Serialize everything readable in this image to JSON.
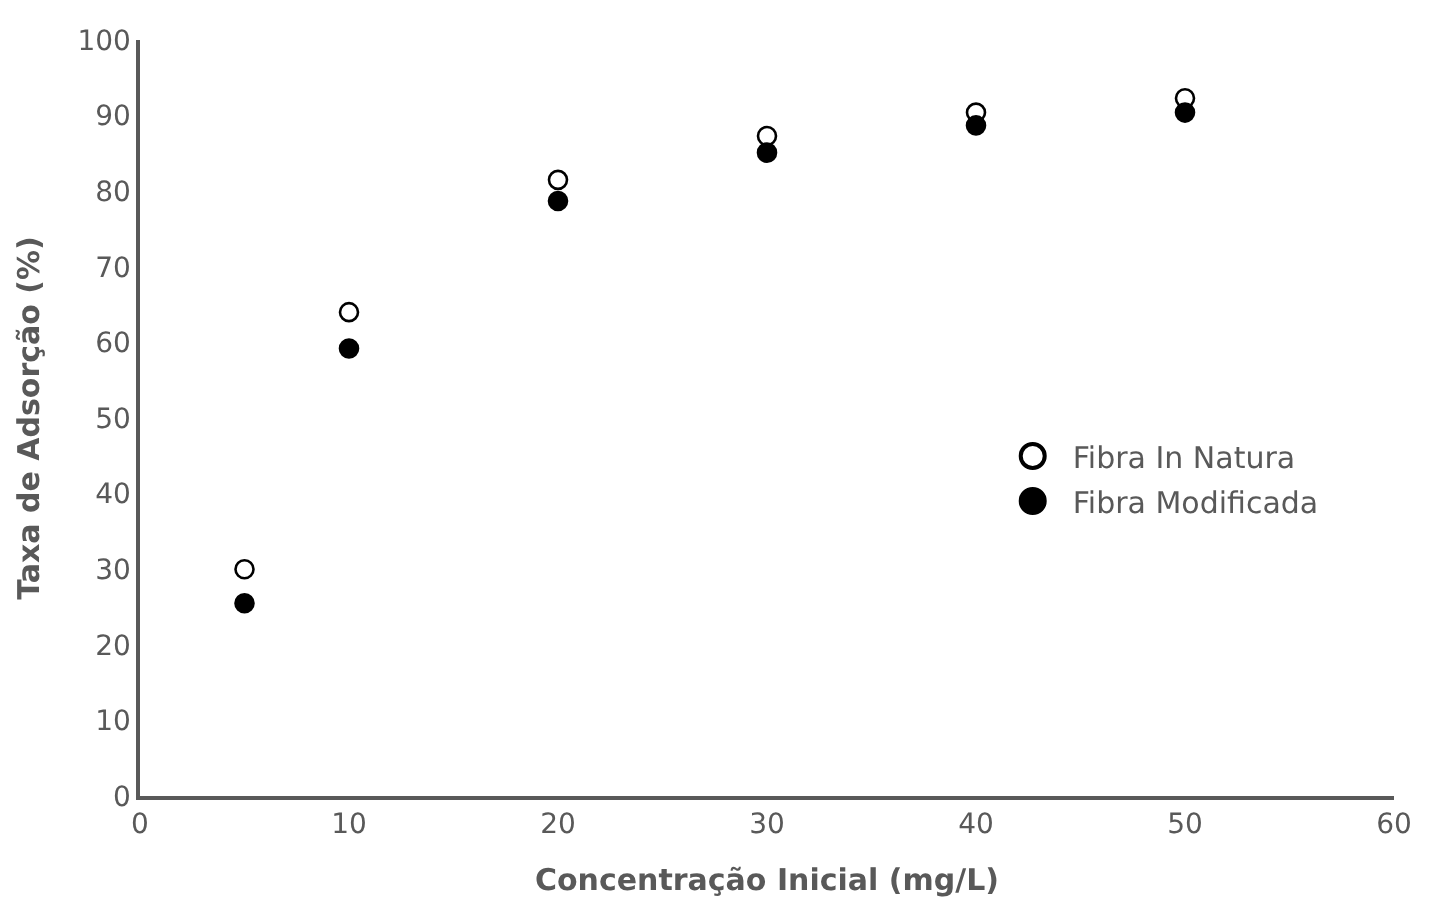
{
  "chart_data": {
    "type": "scatter",
    "xlabel": "Concentração Inicial (mg/L)",
    "ylabel": "Taxa de Adsorção (%)",
    "x": [
      5,
      10,
      20,
      30,
      40,
      50
    ],
    "series": [
      {
        "name": "Fibra In Natura",
        "color": "#000000",
        "marker": "circle-open",
        "values": [
          30,
          64,
          81.5,
          87.3,
          90.4,
          92.3
        ]
      },
      {
        "name": "Fibra Modificada",
        "color": "#000000",
        "marker": "circle",
        "values": [
          25.5,
          59.2,
          78.7,
          85.1,
          88.7,
          90.4
        ]
      }
    ],
    "xlim": [
      0,
      60
    ],
    "xticks": [
      0,
      10,
      20,
      30,
      40,
      50,
      60
    ],
    "ylim": [
      0,
      100
    ],
    "yticks": [
      0,
      10,
      20,
      30,
      40,
      50,
      60,
      70,
      80,
      90,
      100
    ],
    "legend": "right"
  }
}
